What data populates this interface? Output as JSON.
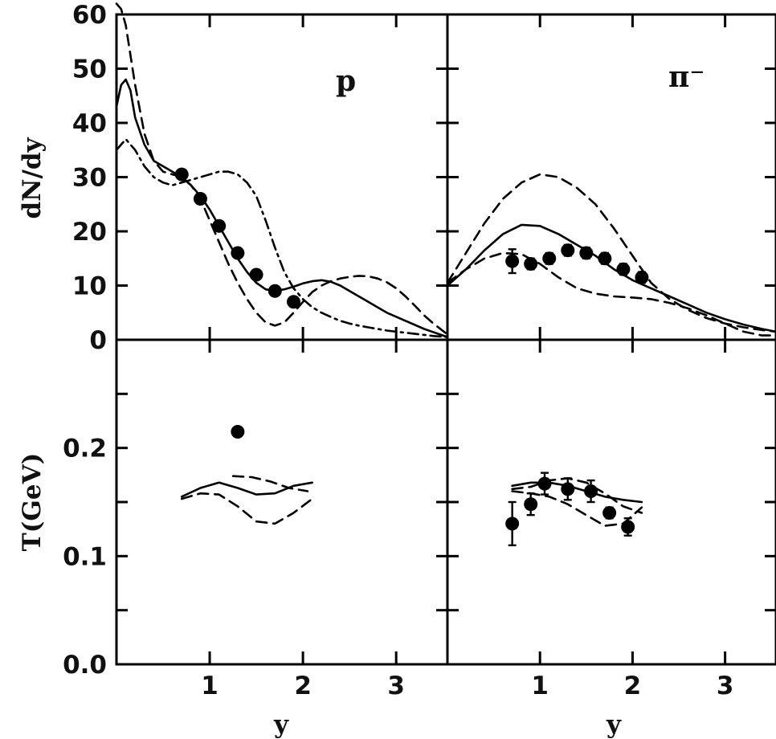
{
  "chart_data": [
    {
      "type": "line",
      "panel": "top-left",
      "panel_label": "p",
      "ylabel": "dN/dy",
      "xlabel": "",
      "xlim": [
        0,
        3.55
      ],
      "ylim": [
        0,
        60
      ],
      "x_ticks": [
        1,
        2,
        3
      ],
      "y_ticks": [
        0,
        10,
        20,
        30,
        40,
        50,
        60
      ],
      "series": [
        {
          "style": "solid",
          "x": [
            0.0,
            0.05,
            0.1,
            0.15,
            0.2,
            0.3,
            0.4,
            0.5,
            0.6,
            0.7,
            0.8,
            0.9,
            1.0,
            1.1,
            1.2,
            1.3,
            1.4,
            1.5,
            1.6,
            1.7,
            1.8,
            1.9,
            2.0,
            2.1,
            2.2,
            2.3,
            2.4,
            2.5,
            2.7,
            2.9,
            3.1,
            3.3,
            3.55
          ],
          "y": [
            43,
            47,
            48,
            46,
            41,
            36,
            33,
            32,
            31,
            30,
            28.5,
            26.5,
            24,
            21,
            18,
            15,
            12.5,
            10.5,
            9.3,
            9.0,
            9.3,
            9.8,
            10.4,
            10.8,
            11.0,
            10.7,
            10.0,
            9.0,
            7.0,
            5.0,
            3.5,
            2.0,
            0.5
          ]
        },
        {
          "style": "dashed",
          "x": [
            0.0,
            0.05,
            0.1,
            0.2,
            0.3,
            0.4,
            0.5,
            0.6,
            0.7,
            0.8,
            0.9,
            1.0,
            1.1,
            1.2,
            1.3,
            1.4,
            1.5,
            1.6,
            1.7,
            1.8,
            1.9,
            2.0,
            2.1,
            2.2,
            2.3,
            2.4,
            2.5,
            2.6,
            2.7,
            2.8,
            2.9,
            3.0,
            3.1,
            3.2,
            3.3,
            3.4,
            3.55
          ],
          "y": [
            62,
            61,
            58,
            47,
            38,
            33,
            31,
            30.5,
            30,
            28.5,
            26,
            22,
            18,
            14,
            10.5,
            7.5,
            5.0,
            3.2,
            2.6,
            3.2,
            5.0,
            7.0,
            8.8,
            10.0,
            10.8,
            11.3,
            11.6,
            11.8,
            11.7,
            11.3,
            10.6,
            9.5,
            8.0,
            6.3,
            4.5,
            3.0,
            1.0
          ]
        },
        {
          "style": "dash-dot",
          "x": [
            0.0,
            0.05,
            0.1,
            0.2,
            0.3,
            0.4,
            0.5,
            0.6,
            0.7,
            0.8,
            0.9,
            1.0,
            1.1,
            1.2,
            1.3,
            1.4,
            1.5,
            1.6,
            1.7,
            1.8,
            1.9,
            2.0,
            2.1,
            2.2,
            2.3,
            2.4,
            2.5,
            2.6,
            2.7,
            2.8,
            2.9,
            3.0,
            3.1,
            3.2,
            3.3,
            3.4,
            3.55
          ],
          "y": [
            35,
            36,
            37,
            35,
            32,
            30,
            29,
            28.5,
            29,
            29.5,
            30,
            30.5,
            31,
            31,
            30.5,
            29,
            26.5,
            22,
            17,
            12.5,
            9.5,
            7.5,
            6.0,
            5.0,
            4.2,
            3.5,
            3.0,
            2.6,
            2.3,
            2.0,
            1.7,
            1.5,
            1.3,
            1.1,
            0.9,
            0.7,
            0.5
          ]
        }
      ],
      "points": {
        "x": [
          0.7,
          0.9,
          1.1,
          1.3,
          1.5,
          1.7,
          1.9
        ],
        "y": [
          30.5,
          26,
          21,
          16,
          12,
          9,
          7
        ]
      }
    },
    {
      "type": "line",
      "panel": "top-right",
      "panel_label": "π⁻",
      "ylabel": "",
      "xlabel": "",
      "xlim": [
        0,
        3.55
      ],
      "ylim": [
        0,
        60
      ],
      "x_ticks": [
        1,
        2,
        3
      ],
      "y_ticks": [
        0,
        10,
        20,
        30,
        40,
        50,
        60
      ],
      "series": [
        {
          "style": "solid",
          "x": [
            0.0,
            0.2,
            0.4,
            0.6,
            0.8,
            1.0,
            1.2,
            1.4,
            1.6,
            1.8,
            2.0,
            2.2,
            2.4,
            2.6,
            2.8,
            3.0,
            3.2,
            3.4,
            3.55
          ],
          "y": [
            10,
            13,
            16.5,
            19.5,
            21.2,
            21,
            19.5,
            17.5,
            15.5,
            13,
            11,
            9.5,
            8,
            6.5,
            5,
            3.8,
            2.8,
            2.0,
            1.5
          ]
        },
        {
          "style": "dashed",
          "x": [
            0.0,
            0.2,
            0.4,
            0.6,
            0.8,
            1.0,
            1.2,
            1.4,
            1.6,
            1.8,
            2.0,
            2.2,
            2.4,
            2.6,
            2.8,
            3.0,
            3.2,
            3.4,
            3.55
          ],
          "y": [
            10.5,
            16,
            21.5,
            26,
            29,
            30.5,
            30,
            28,
            25,
            20.5,
            15.5,
            10.5,
            7.5,
            5.5,
            4.0,
            3.0,
            2.3,
            1.8,
            1.5
          ]
        },
        {
          "style": "dashed",
          "x": [
            0.0,
            0.2,
            0.4,
            0.6,
            0.8,
            1.0,
            1.2,
            1.4,
            1.6,
            1.8,
            2.0,
            2.2,
            2.4,
            2.6,
            2.8,
            3.0,
            3.2,
            3.4,
            3.55
          ],
          "y": [
            10.5,
            13,
            15,
            16,
            15.8,
            14,
            11.5,
            9.5,
            8.5,
            8,
            7.8,
            7.5,
            6.8,
            5.8,
            4.5,
            3.0,
            1.5,
            0.8,
            0.8
          ]
        }
      ],
      "points": {
        "x": [
          0.7,
          0.9,
          1.1,
          1.3,
          1.5,
          1.7,
          1.9,
          2.1
        ],
        "y": [
          14.5,
          14,
          15,
          16.5,
          16,
          15,
          13,
          11.5
        ],
        "err": [
          2.2,
          1.0,
          1.0,
          1.0,
          1.0,
          1.0,
          1.0,
          1.0
        ]
      }
    },
    {
      "type": "line",
      "panel": "bottom-left",
      "ylabel": "T(GeV)",
      "xlabel": "y",
      "xlim": [
        0,
        3.55
      ],
      "ylim": [
        0,
        0.3
      ],
      "x_ticks": [
        1,
        2,
        3
      ],
      "x_tick_labels": [
        "1",
        "2",
        "3"
      ],
      "y_ticks": [
        0,
        0.1,
        0.2
      ],
      "y_tick_labels": [
        "0.0",
        "0.1",
        "0.2"
      ],
      "series": [
        {
          "style": "solid",
          "x": [
            0.7,
            0.9,
            1.1,
            1.3,
            1.5,
            1.7,
            1.9,
            2.1
          ],
          "y": [
            0.155,
            0.163,
            0.168,
            0.163,
            0.157,
            0.158,
            0.165,
            0.168
          ]
        },
        {
          "style": "dashed",
          "x": [
            0.7,
            0.9,
            1.1,
            1.3,
            1.5,
            1.7,
            1.9,
            2.1
          ],
          "y": [
            0.153,
            0.158,
            0.157,
            0.146,
            0.132,
            0.13,
            0.14,
            0.153
          ]
        },
        {
          "style": "dashed",
          "x": [
            1.25,
            1.45,
            1.65,
            1.85,
            2.05
          ],
          "y": [
            0.174,
            0.173,
            0.169,
            0.163,
            0.16
          ]
        }
      ],
      "points": {
        "x": [
          1.3
        ],
        "y": [
          0.215
        ]
      }
    },
    {
      "type": "line",
      "panel": "bottom-right",
      "ylabel": "",
      "xlabel": "y",
      "xlim": [
        0,
        3.55
      ],
      "ylim": [
        0,
        0.3
      ],
      "x_ticks": [
        1,
        2,
        3
      ],
      "x_tick_labels": [
        "1",
        "2",
        "3"
      ],
      "y_ticks": [
        0,
        0.1,
        0.2
      ],
      "series": [
        {
          "style": "solid",
          "x": [
            0.7,
            0.9,
            1.1,
            1.3,
            1.5,
            1.7,
            1.9,
            2.1
          ],
          "y": [
            0.165,
            0.168,
            0.168,
            0.165,
            0.16,
            0.155,
            0.152,
            0.15
          ]
        },
        {
          "style": "dashed",
          "x": [
            0.7,
            0.9,
            1.1,
            1.3,
            1.5,
            1.7,
            1.9,
            2.1
          ],
          "y": [
            0.162,
            0.164,
            0.17,
            0.172,
            0.168,
            0.158,
            0.146,
            0.14
          ]
        },
        {
          "style": "dashed",
          "x": [
            0.7,
            0.9,
            1.1,
            1.3,
            1.5,
            1.7,
            1.9,
            2.1
          ],
          "y": [
            0.16,
            0.158,
            0.155,
            0.148,
            0.138,
            0.128,
            0.13,
            0.145
          ]
        }
      ],
      "points": {
        "x": [
          0.7,
          0.9,
          1.05,
          1.3,
          1.55,
          1.75,
          1.95
        ],
        "y": [
          0.13,
          0.148,
          0.167,
          0.162,
          0.16,
          0.14,
          0.127
        ],
        "err": [
          0.02,
          0.01,
          0.01,
          0.01,
          0.01,
          0.005,
          0.008
        ]
      }
    }
  ]
}
